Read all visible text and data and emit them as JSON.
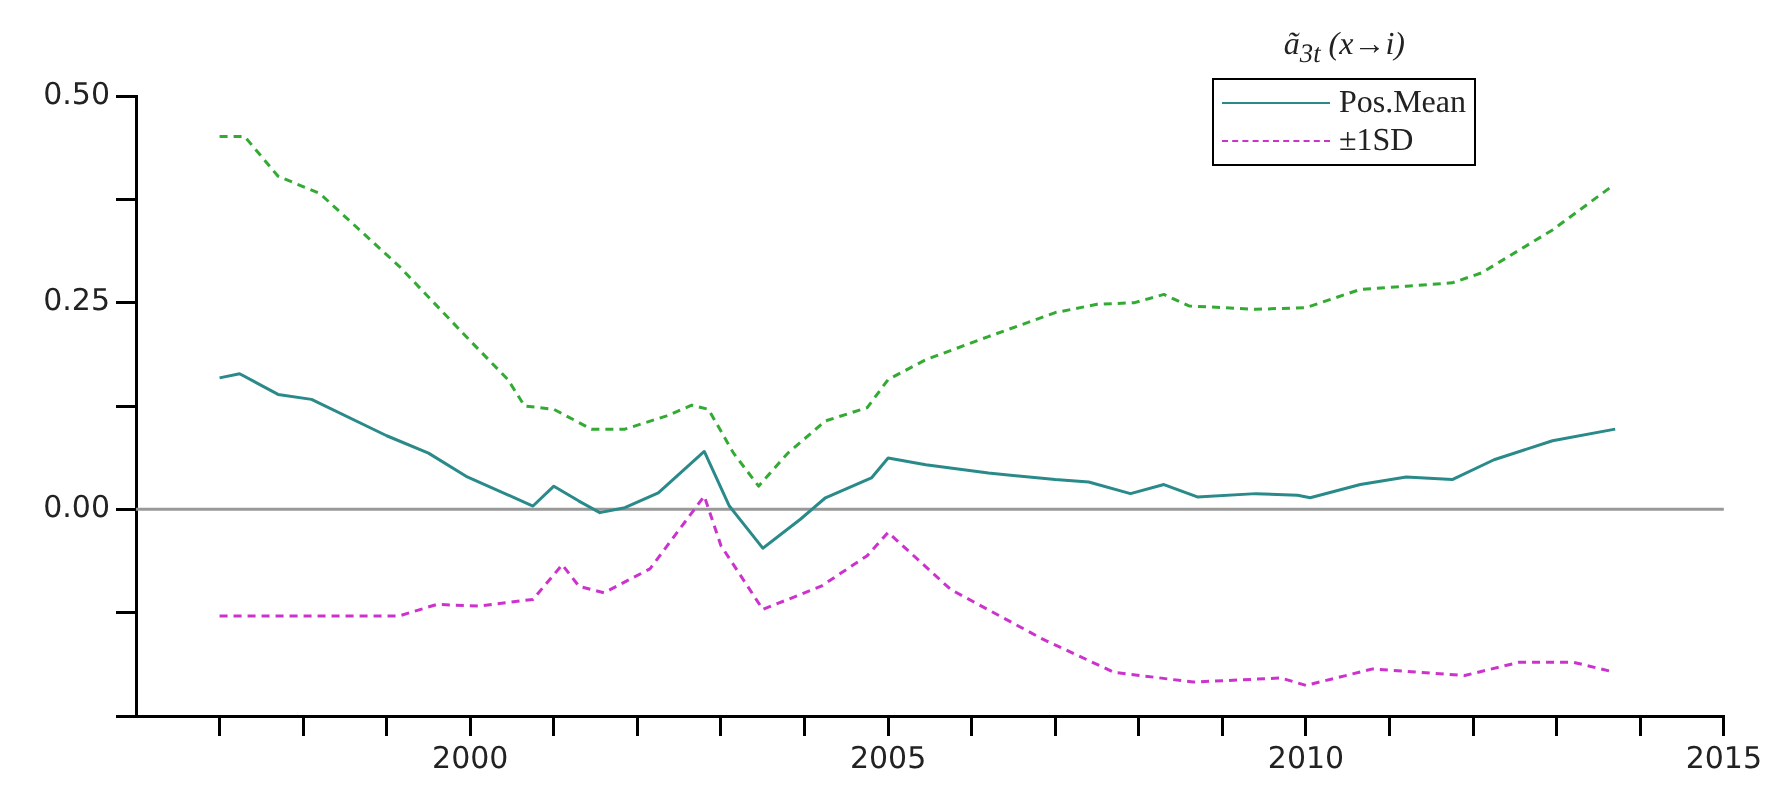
{
  "chart_data": {
    "type": "line",
    "legend_title": "ã$_{3t}$ (x→i)",
    "legend": "top right",
    "grid": false,
    "marker": "none",
    "xlim": [
      1996,
      2015
    ],
    "ylim": [
      -0.25,
      0.5
    ],
    "xticks": [
      {
        "value": 1997,
        "label": null
      },
      {
        "value": 1998,
        "label": null
      },
      {
        "value": 1999,
        "label": null
      },
      2000,
      {
        "value": 2001,
        "label": null
      },
      {
        "value": 2002,
        "label": null
      },
      {
        "value": 2003,
        "label": null
      },
      {
        "value": 2004,
        "label": null
      },
      2005,
      {
        "value": 2006,
        "label": null
      },
      {
        "value": 2007,
        "label": null
      },
      {
        "value": 2008,
        "label": null
      },
      {
        "value": 2009,
        "label": null
      },
      2010,
      {
        "value": 2011,
        "label": null
      },
      {
        "value": 2012,
        "label": null
      },
      {
        "value": 2013,
        "label": null
      },
      {
        "value": 2014,
        "label": null
      },
      2015
    ],
    "yticks": [
      {
        "value": -0.25,
        "label": null
      },
      {
        "value": -0.125,
        "label": null
      },
      {
        "value": 0,
        "label": "0.00"
      },
      {
        "value": 0.125,
        "label": null
      },
      {
        "value": 0.25,
        "label": "0.25"
      },
      {
        "value": 0.375,
        "label": null
      },
      {
        "value": 0.5,
        "label": "0.50"
      }
    ],
    "ref_lines": [
      {
        "axis": "y",
        "value": 0,
        "color": "#999999"
      }
    ],
    "series": [
      {
        "name": "Pos.Mean",
        "color": "#2a8a8a",
        "line_style": "solid",
        "x": [
          1997.0,
          1997.24,
          1997.7,
          1998.1,
          1999.0,
          1999.5,
          1999.95,
          2000.75,
          2001.0,
          2001.3,
          2001.55,
          2001.85,
          2002.25,
          2002.8,
          2003.1,
          2003.5,
          2003.95,
          2004.25,
          2004.8,
          2005.0,
          2005.45,
          2006.2,
          2007.0,
          2007.4,
          2007.9,
          2008.3,
          2008.7,
          2009.4,
          2009.9,
          2010.05,
          2010.65,
          2011.2,
          2011.75,
          2012.25,
          2012.95,
          2013.7
        ],
        "values": [
          0.159,
          0.164,
          0.139,
          0.133,
          0.089,
          0.068,
          0.04,
          0.004,
          0.028,
          0.01,
          -0.004,
          0.002,
          0.02,
          0.07,
          0.004,
          -0.047,
          -0.012,
          0.014,
          0.038,
          0.062,
          0.054,
          0.044,
          0.036,
          0.033,
          0.019,
          0.03,
          0.015,
          0.019,
          0.017,
          0.014,
          0.03,
          0.039,
          0.036,
          0.06,
          0.083,
          0.097
        ]
      },
      {
        "name": "±1SD",
        "color": "#cc33cc",
        "line_style": "dashed",
        "x": [
          1997.0,
          1999.15,
          1999.6,
          2000.1,
          2000.75,
          2001.1,
          2001.3,
          2001.6,
          2002.15,
          2002.8,
          2003.0,
          2003.5,
          2004.2,
          2004.75,
          2005.0,
          2005.75,
          2006.85,
          2007.7,
          2008.65,
          2009.7,
          2010.0,
          2010.8,
          2011.9,
          2012.55,
          2013.2,
          2013.65
        ],
        "values": [
          -0.129,
          -0.129,
          -0.115,
          -0.117,
          -0.109,
          -0.067,
          -0.093,
          -0.101,
          -0.072,
          0.016,
          -0.044,
          -0.121,
          -0.093,
          -0.056,
          -0.028,
          -0.097,
          -0.157,
          -0.197,
          -0.209,
          -0.204,
          -0.213,
          -0.193,
          -0.201,
          -0.185,
          -0.185,
          -0.196
        ]
      },
      {
        "color": "#33aa33",
        "line_style": "dashed",
        "x": [
          1997.0,
          1997.3,
          1997.7,
          1998.2,
          1999.15,
          1999.95,
          2000.45,
          2000.65,
          2001.0,
          2001.45,
          2001.85,
          2002.35,
          2002.65,
          2002.85,
          2003.15,
          2003.45,
          2003.8,
          2004.25,
          2004.75,
          2005.0,
          2005.45,
          2006.2,
          2007.0,
          2007.5,
          2007.95,
          2008.3,
          2008.6,
          2009.4,
          2010.0,
          2010.65,
          2011.2,
          2011.75,
          2012.1,
          2012.95,
          2013.65
        ],
        "values": [
          0.451,
          0.451,
          0.403,
          0.382,
          0.294,
          0.209,
          0.157,
          0.125,
          0.121,
          0.097,
          0.097,
          0.113,
          0.126,
          0.121,
          0.068,
          0.028,
          0.068,
          0.107,
          0.123,
          0.157,
          0.181,
          0.209,
          0.238,
          0.248,
          0.25,
          0.26,
          0.246,
          0.242,
          0.244,
          0.266,
          0.27,
          0.274,
          0.286,
          0.338,
          0.39
        ]
      }
    ]
  }
}
